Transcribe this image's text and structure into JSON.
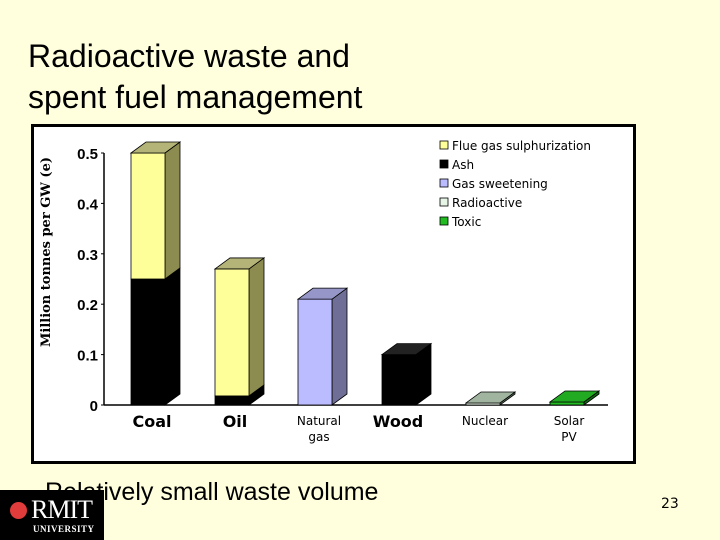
{
  "slide": {
    "title_line1": "Radioactive waste and",
    "title_line2": "spent fuel management",
    "bullet": "Relatively small waste volume",
    "slide_number": "23",
    "background": "#FFFFDD"
  },
  "logo": {
    "name": "RMIT",
    "sub": "UNIVERSITY"
  },
  "chart_data": {
    "type": "bar",
    "stacked": true,
    "three_d": true,
    "title": "",
    "xlabel": "",
    "ylabel": "Million tonnes per GW (e)",
    "ylim": [
      0,
      0.5
    ],
    "yticks": [
      "0",
      "0.1",
      "0.2",
      "0.3",
      "0.4",
      "0.5"
    ],
    "categories": [
      "Coal",
      "Oil",
      "Natural gas",
      "Wood",
      "Nuclear",
      "Solar PV"
    ],
    "series": [
      {
        "name": "Ash",
        "color": "#000000",
        "side": "#000000",
        "top": "#222222",
        "values": [
          0.25,
          0.018,
          0,
          0.1,
          0,
          0
        ]
      },
      {
        "name": "Flue gas sulphurization",
        "color": "#FFFF99",
        "side": "#8C8C50",
        "top": "#B4B478",
        "values": [
          0.25,
          0.252,
          0,
          0,
          0,
          0
        ]
      },
      {
        "name": "Gas sweetening",
        "color": "#BBBBFF",
        "side": "#6E6E96",
        "top": "#9696C8",
        "values": [
          0,
          0,
          0.21,
          0,
          0,
          0
        ]
      },
      {
        "name": "Radioactive",
        "color": "#E6F5E6",
        "side": "#5A6E5A",
        "top": "#A0B4A0",
        "values": [
          0,
          0,
          0,
          0,
          0.004,
          0
        ]
      },
      {
        "name": "Toxic",
        "color": "#22BB22",
        "side": "#116611",
        "top": "#22AA22",
        "values": [
          0,
          0,
          0,
          0,
          0,
          0.006
        ]
      }
    ],
    "legend": [
      {
        "label": "Flue gas sulphurization",
        "color": "#FFFF99"
      },
      {
        "label": "Ash",
        "color": "#000000"
      },
      {
        "label": "Gas sweetening",
        "color": "#BBBBFF"
      },
      {
        "label": "Radioactive",
        "color": "#E6F5E6"
      },
      {
        "label": "Toxic",
        "color": "#22BB22"
      }
    ],
    "legend_position": "top-right",
    "grid": false
  }
}
